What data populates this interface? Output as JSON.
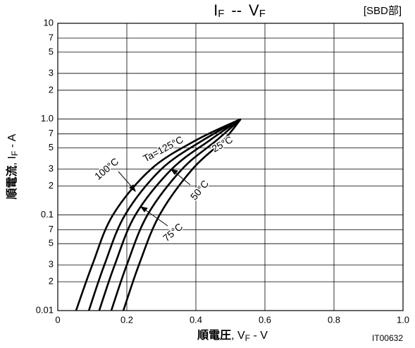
{
  "chart_data": {
    "type": "line",
    "title": [
      "I",
      "F",
      "--",
      "V",
      "F"
    ],
    "note": "[SBD部]",
    "code": "IT00632",
    "x_label": [
      "順電圧",
      ", V",
      "F",
      " - V"
    ],
    "y_label": [
      "順電流",
      ", I",
      "F",
      " - A"
    ],
    "log_y": true,
    "grid": true,
    "color": "#000000",
    "xlim": [
      0,
      1.0
    ],
    "xticks": [
      0,
      0.2,
      0.4,
      0.6,
      0.8,
      {
        "value": 1.0,
        "label": "1.0"
      }
    ],
    "ylim": [
      0.01,
      10
    ],
    "yticks": [
      0.01,
      {
        "value": 0.02,
        "label": "2"
      },
      {
        "value": 0.03,
        "label": "3"
      },
      {
        "value": 0.05,
        "label": "5"
      },
      {
        "value": 0.07,
        "label": "7"
      },
      0.1,
      {
        "value": 0.2,
        "label": "2"
      },
      {
        "value": 0.3,
        "label": "3"
      },
      {
        "value": 0.5,
        "label": "5"
      },
      {
        "value": 0.7,
        "label": "7"
      },
      {
        "value": 1.0,
        "label": "1.0"
      },
      {
        "value": 2,
        "label": "2"
      },
      {
        "value": 3,
        "label": "3"
      },
      {
        "value": 5,
        "label": "5"
      },
      {
        "value": 7,
        "label": "7"
      },
      10
    ],
    "series": [
      {
        "name": "Ta=125°C",
        "x": [
          0.053,
          0.1,
          0.16,
          0.27,
          0.4,
          0.53
        ],
        "values": [
          0.01,
          0.03,
          0.1,
          0.3,
          0.6,
          1.0
        ]
      },
      {
        "name": "100°C",
        "x": [
          0.09,
          0.135,
          0.195,
          0.3,
          0.42,
          0.53
        ],
        "values": [
          0.01,
          0.03,
          0.1,
          0.3,
          0.6,
          1.0
        ]
      },
      {
        "name": "75°C",
        "x": [
          0.12,
          0.165,
          0.225,
          0.33,
          0.44,
          0.53
        ],
        "values": [
          0.01,
          0.03,
          0.1,
          0.3,
          0.6,
          1.0
        ]
      },
      {
        "name": "50°C",
        "x": [
          0.155,
          0.2,
          0.26,
          0.36,
          0.46,
          0.53
        ],
        "values": [
          0.01,
          0.03,
          0.1,
          0.3,
          0.6,
          1.0
        ]
      },
      {
        "name": "25°C",
        "x": [
          0.19,
          0.235,
          0.295,
          0.39,
          0.48,
          0.53
        ],
        "values": [
          0.01,
          0.03,
          0.1,
          0.3,
          0.6,
          1.0
        ]
      }
    ]
  }
}
